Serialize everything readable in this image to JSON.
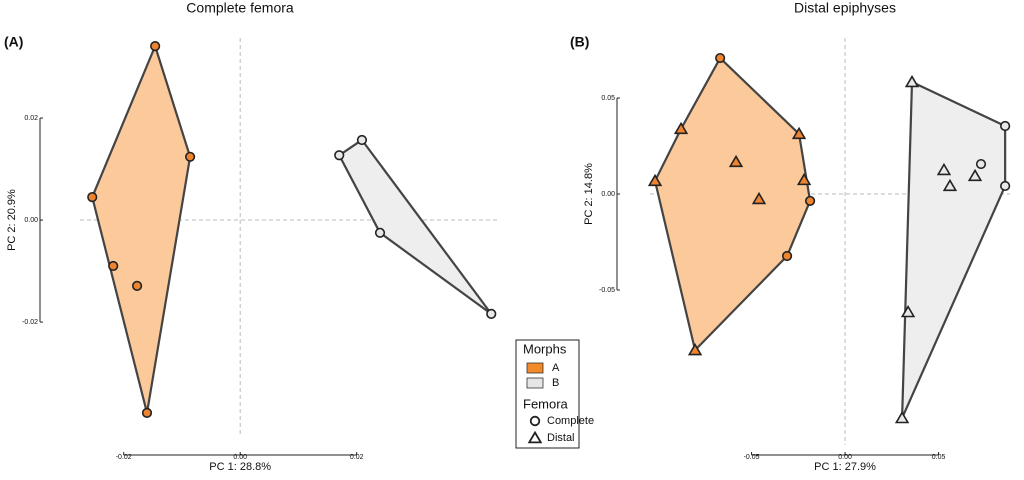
{
  "chart_data": [
    {
      "type": "scatter",
      "panel": "(A)",
      "title": "Complete femora",
      "x_label": "PC 1: 28.8%",
      "y_label": "PC 2: 20.9%",
      "xlim": [
        -0.0275,
        0.0446
      ],
      "ylim": [
        -0.0392,
        0.0353
      ],
      "xticks": [
        -0.02,
        {
          "value": 0,
          "label": "0.00"
        },
        0.02
      ],
      "yticks": [
        -0.02,
        {
          "value": 0,
          "label": "0.00"
        },
        0.02
      ],
      "series": [
        {
          "name": "A",
          "color": "#ee8330",
          "hull_color": "#fcc99a",
          "x": [
            -0.0146,
            -0.0086,
            -0.0254,
            -0.0218,
            -0.0177,
            -0.016
          ],
          "y": [
            0.0341,
            0.0124,
            0.0045,
            -0.009,
            -0.0129,
            -0.0378
          ],
          "shape": [
            "circle",
            "circle",
            "circle",
            "circle",
            "circle",
            "circle"
          ]
        },
        {
          "name": "B",
          "color": "#e8e8e8",
          "hull_color": "#eeeeee",
          "x": [
            0.017,
            0.0209,
            0.024,
            0.0431
          ],
          "y": [
            0.0127,
            0.0157,
            -0.0025,
            -0.0184
          ],
          "shape": [
            "circle",
            "circle",
            "circle",
            "circle"
          ]
        }
      ]
    },
    {
      "type": "scatter",
      "panel": "(B)",
      "title": "Distal epiphyses",
      "x_label": "PC 1: 27.9%",
      "y_label": "PC 2: 14.8%",
      "xlim": [
        -0.1043,
        0.0882
      ],
      "ylim": [
        -0.1229,
        0.0802
      ],
      "xticks": [
        -0.05,
        {
          "value": 0,
          "label": "0.00"
        },
        0.05
      ],
      "yticks": [
        -0.05,
        {
          "value": 0,
          "label": "0.00"
        },
        0.05
      ],
      "series": [
        {
          "name": "A",
          "color": "#ee8330",
          "hull_color": "#fcc99a",
          "x": [
            -0.0668,
            -0.0187,
            -0.031,
            -0.0877,
            -0.1016,
            -0.0583,
            -0.046,
            -0.0246,
            -0.0219,
            -0.0802
          ],
          "y": [
            0.0708,
            -0.0036,
            -0.0323,
            0.0339,
            0.0068,
            0.0167,
            -0.0026,
            0.0313,
            0.0073,
            -0.0813
          ],
          "shape": [
            "circle",
            "circle",
            "circle",
            "triangle",
            "triangle",
            "triangle",
            "triangle",
            "triangle",
            "triangle",
            "triangle"
          ]
        },
        {
          "name": "B",
          "color": "#e8e8e8",
          "hull_color": "#eeeeee",
          "x": [
            0.0856,
            0.0727,
            0.0856,
            0.0358,
            0.0529,
            0.0561,
            0.0695,
            0.0337,
            0.0305
          ],
          "y": [
            0.0354,
            0.0156,
            0.0042,
            0.0583,
            0.0125,
            0.0042,
            0.0094,
            -0.0615,
            -0.1167
          ],
          "shape": [
            "circle",
            "circle",
            "circle",
            "triangle",
            "triangle",
            "triangle",
            "triangle",
            "triangle",
            "triangle"
          ]
        }
      ]
    }
  ],
  "legend": {
    "morphs": {
      "title": "Morphs",
      "items": [
        {
          "name": "A",
          "color": "#f08a2a"
        },
        {
          "name": "B",
          "color": "#e6e6e6"
        }
      ]
    },
    "femora": {
      "title": "Femora",
      "items": [
        {
          "name": "Complete",
          "shape": "circle"
        },
        {
          "name": "Distal",
          "shape": "triangle"
        }
      ]
    }
  }
}
